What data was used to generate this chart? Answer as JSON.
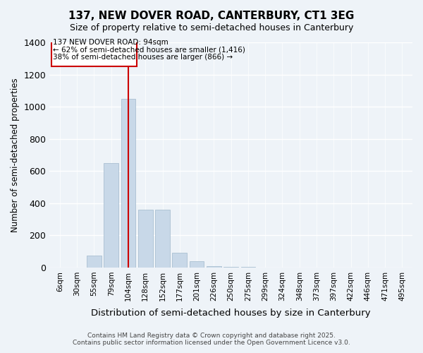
{
  "title": "137, NEW DOVER ROAD, CANTERBURY, CT1 3EG",
  "subtitle": "Size of property relative to semi-detached houses in Canterbury",
  "xlabel": "Distribution of semi-detached houses by size in Canterbury",
  "ylabel": "Number of semi-detached properties",
  "bar_color": "#c8d8e8",
  "bar_edgecolor": "#a0b8cc",
  "background_color": "#eef3f8",
  "grid_color": "#ffffff",
  "categories": [
    "6sqm",
    "30sqm",
    "55sqm",
    "79sqm",
    "104sqm",
    "128sqm",
    "152sqm",
    "177sqm",
    "201sqm",
    "226sqm",
    "250sqm",
    "275sqm",
    "299sqm",
    "324sqm",
    "348sqm",
    "373sqm",
    "397sqm",
    "422sqm",
    "446sqm",
    "471sqm",
    "495sqm"
  ],
  "values": [
    0,
    0,
    75,
    650,
    1050,
    360,
    360,
    90,
    40,
    10,
    5,
    2,
    1,
    0,
    0,
    0,
    0,
    0,
    0,
    0,
    0
  ],
  "ylim": [
    0,
    1400
  ],
  "yticks": [
    0,
    200,
    400,
    600,
    800,
    1000,
    1200,
    1400
  ],
  "property_bar_index": 4,
  "property_label": "137 NEW DOVER ROAD: 94sqm",
  "annotation_line1": "← 62% of semi-detached houses are smaller (1,416)",
  "annotation_line2": "38% of semi-detached houses are larger (866) →",
  "redline_color": "#cc0000",
  "annotation_box_color": "#cc0000",
  "footer_line1": "Contains HM Land Registry data © Crown copyright and database right 2025.",
  "footer_line2": "Contains public sector information licensed under the Open Government Licence v3.0."
}
